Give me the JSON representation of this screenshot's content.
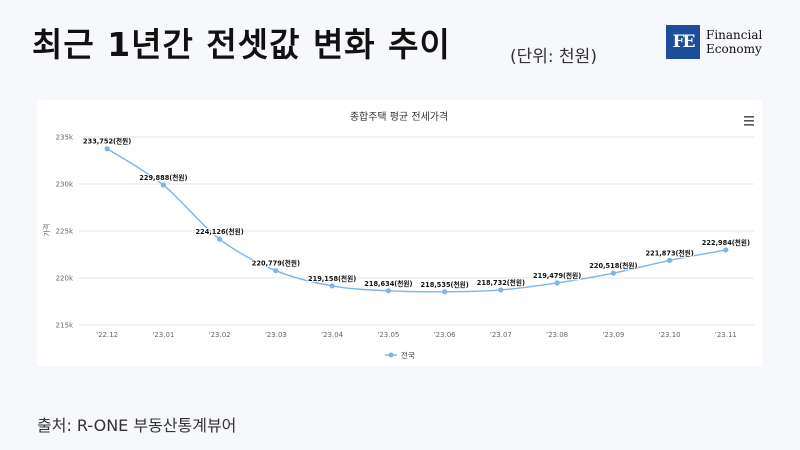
{
  "header": {
    "title": "최근 1년간 전셋값 변화 추이",
    "unit": "(단위: 천원)"
  },
  "logo": {
    "mark": "FE",
    "line1": "Financial",
    "line2": "Economy"
  },
  "source": "출처: R-ONE 부동산통계뷰어",
  "menu_icon": "hamburger-menu-icon",
  "colors": {
    "line": "#7cb5ec",
    "logo": "#1e4c9a"
  },
  "chart_data": {
    "type": "line",
    "title": "종합주택 평균 전세가격",
    "xlabel": "",
    "ylabel": "가격",
    "ylim": [
      215000,
      235000
    ],
    "yticks": [
      {
        "v": 215000,
        "label": "215k"
      },
      {
        "v": 220000,
        "label": "220k"
      },
      {
        "v": 225000,
        "label": "225k"
      },
      {
        "v": 230000,
        "label": "230k"
      },
      {
        "v": 235000,
        "label": "235k"
      }
    ],
    "grid": true,
    "legend": "bottom-center",
    "categories": [
      "'22.12",
      "'23.01",
      "'23.02",
      "'23.03",
      "'23.04",
      "'23.05",
      "'23.06",
      "'23.07",
      "'23.08",
      "'23.09",
      "'23.10",
      "'23.11"
    ],
    "series": [
      {
        "name": "전국",
        "values": [
          233752,
          229888,
          224126,
          220779,
          219158,
          218634,
          218535,
          218732,
          219479,
          220518,
          221873,
          222984
        ],
        "labels": [
          "233,752(천원)",
          "229,888(천원)",
          "224,126(천원)",
          "220,779(천원)",
          "219,158(천원)",
          "218,634(천원)",
          "218,535(천원)",
          "218,732(천원)",
          "219,479(천원)",
          "220,518(천원)",
          "221,873(천원)",
          "222,984(천원)"
        ]
      }
    ]
  }
}
